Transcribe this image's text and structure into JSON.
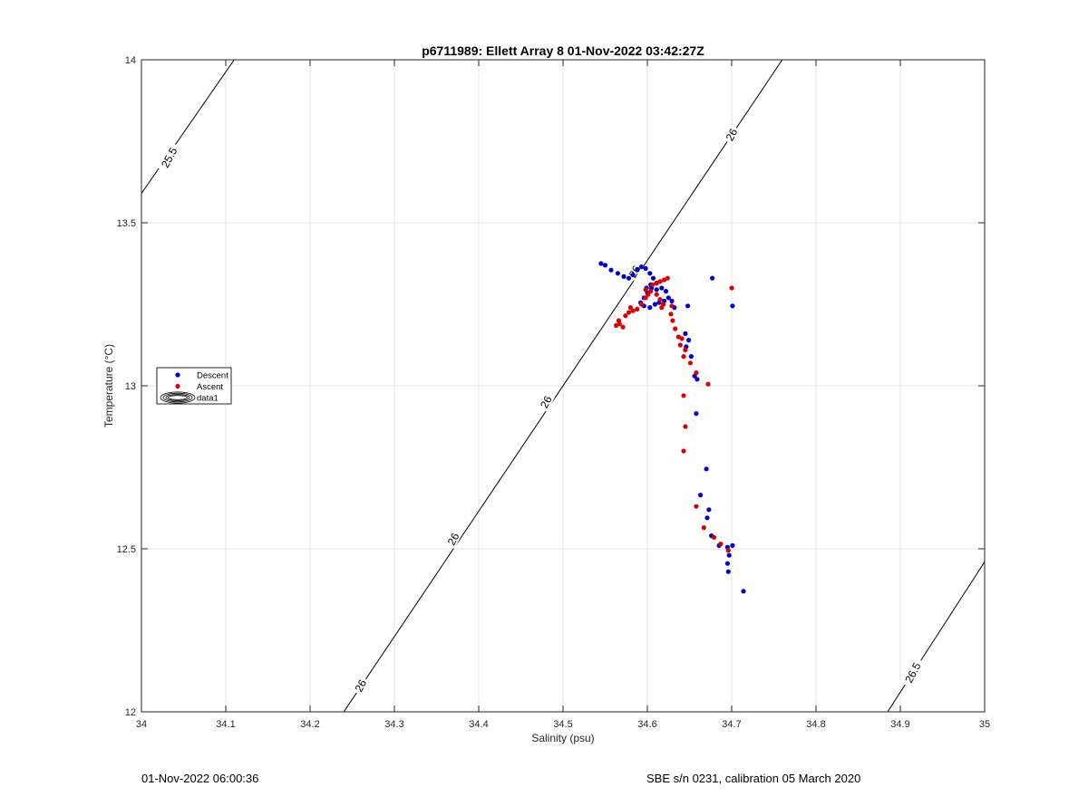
{
  "chart_data": {
    "type": "scatter",
    "title": "p6711989: Ellett Array 8 01-Nov-2022 03:42:27Z",
    "xlabel": "Salinity (psu)",
    "ylabel": "Temperature (°C)",
    "xlim": [
      34,
      35
    ],
    "ylim": [
      12,
      14
    ],
    "xticks": [
      34,
      34.1,
      34.2,
      34.3,
      34.4,
      34.5,
      34.6,
      34.7,
      34.8,
      34.9,
      35
    ],
    "xtick_labels": [
      "34",
      "34.1",
      "34.2",
      "34.3",
      "34.4",
      "34.5",
      "34.6",
      "34.7",
      "34.8",
      "34.9",
      "35"
    ],
    "yticks": [
      12,
      12.5,
      13,
      13.5,
      14
    ],
    "ytick_labels": [
      "12",
      "12.5",
      "13",
      "13.5",
      "14"
    ],
    "grid": true,
    "legend_position": "left",
    "legend": [
      {
        "label": "Descent",
        "marker": "dot",
        "color": "#0000cc"
      },
      {
        "label": "Ascent",
        "marker": "dot",
        "color": "#dd0000"
      },
      {
        "label": "data1",
        "marker": "contour-ellipse",
        "color": "#000000"
      }
    ],
    "contours": [
      {
        "label": "25.5",
        "points": [
          [
            34.0,
            13.59
          ],
          [
            34.11,
            14.0
          ]
        ],
        "labels_at": [
          [
            34.03,
            13.7
          ]
        ]
      },
      {
        "label": "26",
        "points": [
          [
            34.24,
            12.0
          ],
          [
            34.76,
            14.0
          ]
        ],
        "labels_at": [
          [
            34.79,
            12.52
          ]
        ]
      },
      {
        "label": "26.5",
        "points": [
          [
            34.885,
            12.0
          ],
          [
            35.0,
            12.46
          ]
        ],
        "labels_at": [
          [
            34.93,
            12.17
          ]
        ]
      }
    ],
    "contour_label_positions": [
      {
        "label": "25.5",
        "s": 34.033,
        "t": 13.7,
        "angle": -62
      },
      {
        "label": "26",
        "s": 34.26,
        "t": 12.08,
        "angle": -62
      },
      {
        "label": "26",
        "s": 34.37,
        "t": 12.53,
        "angle": -62
      },
      {
        "label": "26",
        "s": 34.48,
        "t": 12.95,
        "angle": -62
      },
      {
        "label": "26",
        "s": 34.585,
        "t": 13.35,
        "angle": -62
      },
      {
        "label": "26",
        "s": 34.7,
        "t": 13.77,
        "angle": -62
      },
      {
        "label": "26.5",
        "s": 34.915,
        "t": 12.12,
        "angle": -62
      }
    ],
    "series": [
      {
        "name": "Descent",
        "color": "#0000cc",
        "points": [
          [
            34.545,
            13.375
          ],
          [
            34.55,
            13.37
          ],
          [
            34.557,
            13.355
          ],
          [
            34.565,
            13.345
          ],
          [
            34.572,
            13.335
          ],
          [
            34.578,
            13.33
          ],
          [
            34.583,
            13.34
          ],
          [
            34.588,
            13.355
          ],
          [
            34.593,
            13.365
          ],
          [
            34.598,
            13.36
          ],
          [
            34.603,
            13.345
          ],
          [
            34.607,
            13.33
          ],
          [
            34.611,
            13.315
          ],
          [
            34.605,
            13.3
          ],
          [
            34.6,
            13.285
          ],
          [
            34.596,
            13.27
          ],
          [
            34.592,
            13.255
          ],
          [
            34.596,
            13.245
          ],
          [
            34.603,
            13.24
          ],
          [
            34.609,
            13.25
          ],
          [
            34.614,
            13.255
          ],
          [
            34.62,
            13.26
          ],
          [
            34.625,
            13.27
          ],
          [
            34.629,
            13.26
          ],
          [
            34.622,
            13.29
          ],
          [
            34.617,
            13.3
          ],
          [
            34.611,
            13.295
          ],
          [
            34.604,
            13.31
          ],
          [
            34.599,
            13.3
          ],
          [
            34.632,
            13.24
          ],
          [
            34.648,
            13.245
          ],
          [
            34.645,
            13.16
          ],
          [
            34.649,
            13.14
          ],
          [
            34.646,
            13.12
          ],
          [
            34.652,
            13.09
          ],
          [
            34.656,
            13.03
          ],
          [
            34.659,
            13.02
          ],
          [
            34.658,
            12.915
          ],
          [
            34.67,
            12.745
          ],
          [
            34.663,
            12.665
          ],
          [
            34.673,
            12.62
          ],
          [
            34.671,
            12.595
          ],
          [
            34.676,
            12.54
          ],
          [
            34.685,
            12.51
          ],
          [
            34.695,
            12.505
          ],
          [
            34.701,
            12.51
          ],
          [
            34.697,
            12.48
          ],
          [
            34.695,
            12.455
          ],
          [
            34.696,
            12.43
          ],
          [
            34.714,
            12.37
          ],
          [
            34.677,
            13.33
          ],
          [
            34.701,
            13.245
          ]
        ]
      },
      {
        "name": "Ascent",
        "color": "#dd0000",
        "points": [
          [
            34.563,
            13.185
          ],
          [
            34.567,
            13.19
          ],
          [
            34.571,
            13.18
          ],
          [
            34.566,
            13.2
          ],
          [
            34.574,
            13.215
          ],
          [
            34.578,
            13.225
          ],
          [
            34.583,
            13.23
          ],
          [
            34.588,
            13.235
          ],
          [
            34.58,
            13.24
          ],
          [
            34.593,
            13.25
          ],
          [
            34.598,
            13.27
          ],
          [
            34.601,
            13.28
          ],
          [
            34.598,
            13.295
          ],
          [
            34.604,
            13.29
          ],
          [
            34.606,
            13.31
          ],
          [
            34.611,
            13.315
          ],
          [
            34.615,
            13.32
          ],
          [
            34.62,
            13.325
          ],
          [
            34.624,
            13.33
          ],
          [
            34.611,
            13.28
          ],
          [
            34.615,
            13.265
          ],
          [
            34.619,
            13.25
          ],
          [
            34.617,
            13.24
          ],
          [
            34.629,
            13.245
          ],
          [
            34.628,
            13.22
          ],
          [
            34.63,
            13.2
          ],
          [
            34.633,
            13.175
          ],
          [
            34.637,
            13.15
          ],
          [
            34.641,
            13.145
          ],
          [
            34.639,
            13.125
          ],
          [
            34.645,
            13.11
          ],
          [
            34.643,
            13.09
          ],
          [
            34.651,
            13.07
          ],
          [
            34.658,
            13.04
          ],
          [
            34.672,
            13.005
          ],
          [
            34.643,
            12.97
          ],
          [
            34.645,
            12.875
          ],
          [
            34.643,
            12.8
          ],
          [
            34.658,
            12.63
          ],
          [
            34.667,
            12.565
          ],
          [
            34.679,
            12.535
          ],
          [
            34.687,
            12.515
          ],
          [
            34.696,
            12.495
          ],
          [
            34.7,
            13.3
          ]
        ]
      }
    ]
  },
  "footer": {
    "left": "01-Nov-2022 06:00:36",
    "right": "SBE s/n 0231, calibration 05 March 2020"
  }
}
